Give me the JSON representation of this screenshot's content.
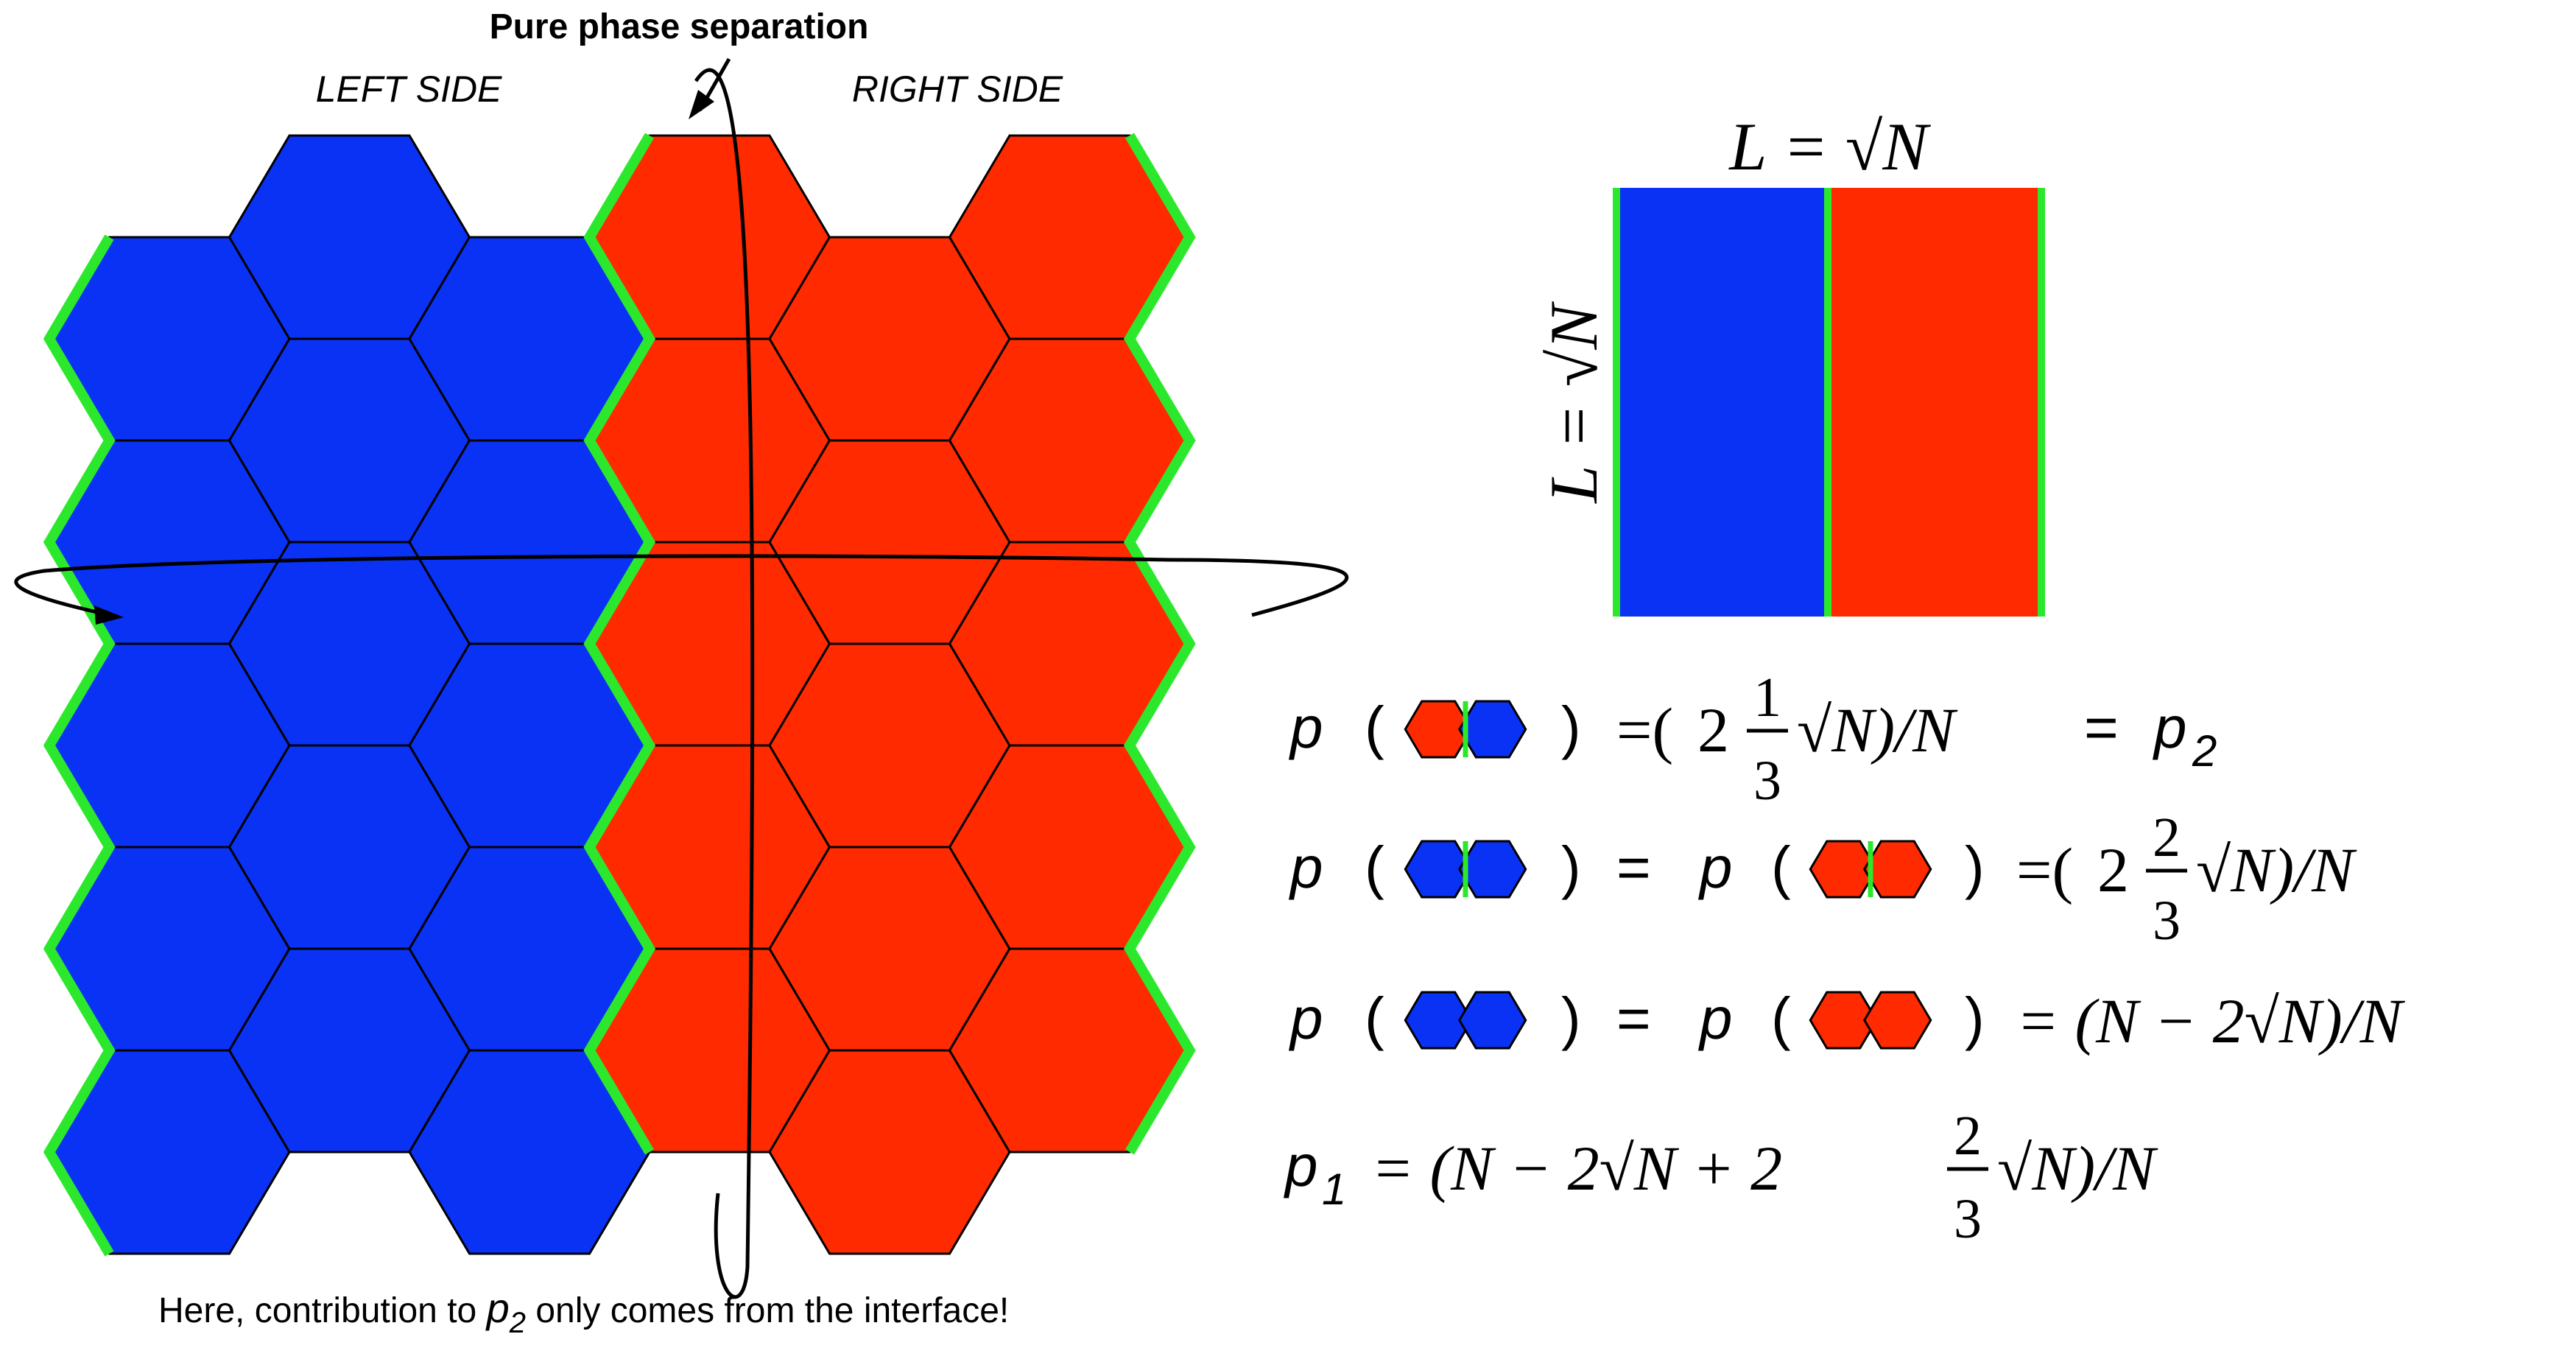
{
  "title": "Pure phase separation",
  "left_label": "LEFT SIDE",
  "right_label": "RIGHT SIDE",
  "caption": {
    "before": "Here, contribution to ",
    "symbol": "p",
    "subscript": "2",
    "after": " only comes from the interface!"
  },
  "colors": {
    "blue": "#0a32f5",
    "red": "#ff2a00",
    "green": "#2ce82c",
    "edge": "#000000"
  },
  "square": {
    "top_label": "L = √N",
    "side_label": "L = √N"
  },
  "equations": [
    {
      "lhs": "p",
      "pairs": [
        [
          "red",
          "blue",
          "interface"
        ]
      ],
      "rhs": "= (2 1/3 √N)/N = p2",
      "rhs_parts": {
        "whole": "2",
        "num": "1",
        "den": "3",
        "tail": "√N)/N",
        "eq_symbol": "p",
        "eq_sub": "2"
      }
    },
    {
      "lhs": "p",
      "pairs": [
        [
          "blue",
          "blue",
          "interface"
        ],
        [
          "red",
          "red",
          "interface"
        ]
      ],
      "rhs": "= (2 2/3 √N)/N",
      "rhs_parts": {
        "whole": "2",
        "num": "2",
        "den": "3",
        "tail": "√N)/N"
      }
    },
    {
      "lhs": "p",
      "pairs": [
        [
          "blue",
          "blue",
          "plain"
        ],
        [
          "red",
          "red",
          "plain"
        ]
      ],
      "rhs": "= (N − 2√N)/N"
    },
    {
      "lhs": "p1",
      "rhs": "= (N − 2√N + 2 2/3 √N)/N",
      "rhs_parts": {
        "num": "2",
        "den": "3"
      }
    }
  ]
}
